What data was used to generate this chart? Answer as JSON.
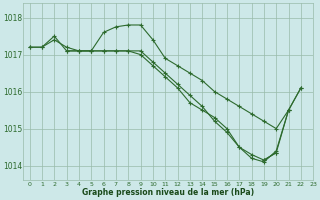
{
  "bg_color": "#cde8e8",
  "grid_color": "#99bbaa",
  "line_color": "#2d6a2d",
  "marker_color": "#2d6a2d",
  "xlabel": "Graphe pression niveau de la mer (hPa)",
  "xlabel_color": "#1a4a1a",
  "ylim": [
    1013.6,
    1018.4
  ],
  "xlim": [
    -0.5,
    23
  ],
  "yticks": [
    1014,
    1015,
    1016,
    1017,
    1018
  ],
  "xticks": [
    0,
    1,
    2,
    3,
    4,
    5,
    6,
    7,
    8,
    9,
    10,
    11,
    12,
    13,
    14,
    15,
    16,
    17,
    18,
    19,
    20,
    21,
    22,
    23
  ],
  "series": [
    {
      "x": [
        0,
        1,
        2,
        3,
        4,
        5,
        6,
        7,
        8,
        9,
        10,
        11,
        12,
        13,
        14,
        15,
        16,
        17,
        18,
        19,
        20,
        21,
        22
      ],
      "y": [
        1017.2,
        1017.2,
        1017.4,
        1017.2,
        1017.1,
        1017.1,
        1017.6,
        1017.75,
        1017.8,
        1017.8,
        1017.4,
        1016.9,
        1016.7,
        1016.5,
        1016.3,
        1016.0,
        1015.8,
        1015.6,
        1015.4,
        1015.2,
        1015.0,
        1015.5,
        1016.1
      ]
    },
    {
      "x": [
        0,
        1,
        2,
        3,
        4,
        5,
        6,
        7,
        8,
        9,
        10,
        11,
        12,
        13,
        14,
        15,
        16,
        17,
        18,
        19,
        20
      ],
      "y": [
        1017.2,
        1017.2,
        1017.5,
        1017.1,
        1017.1,
        1017.1,
        1017.1,
        1017.1,
        1017.1,
        1017.0,
        1016.7,
        1016.4,
        1016.1,
        1015.7,
        1015.5,
        1015.3,
        1015.0,
        1014.5,
        1014.3,
        1014.15,
        1014.35
      ]
    },
    {
      "x": [
        3,
        4,
        5,
        6,
        7,
        8,
        9,
        10,
        11,
        12,
        13,
        14,
        15,
        16,
        17,
        18,
        19,
        20,
        21
      ],
      "y": [
        1017.1,
        1017.1,
        1017.1,
        1017.1,
        1017.1,
        1017.1,
        1017.1,
        1016.8,
        1016.5,
        1016.2,
        1015.9,
        1015.6,
        1015.2,
        1014.9,
        1014.5,
        1014.2,
        1014.1,
        1014.4,
        1015.5
      ]
    },
    {
      "x": [
        19,
        20,
        21,
        22
      ],
      "y": [
        1014.15,
        1014.35,
        1015.5,
        1016.1
      ]
    }
  ]
}
